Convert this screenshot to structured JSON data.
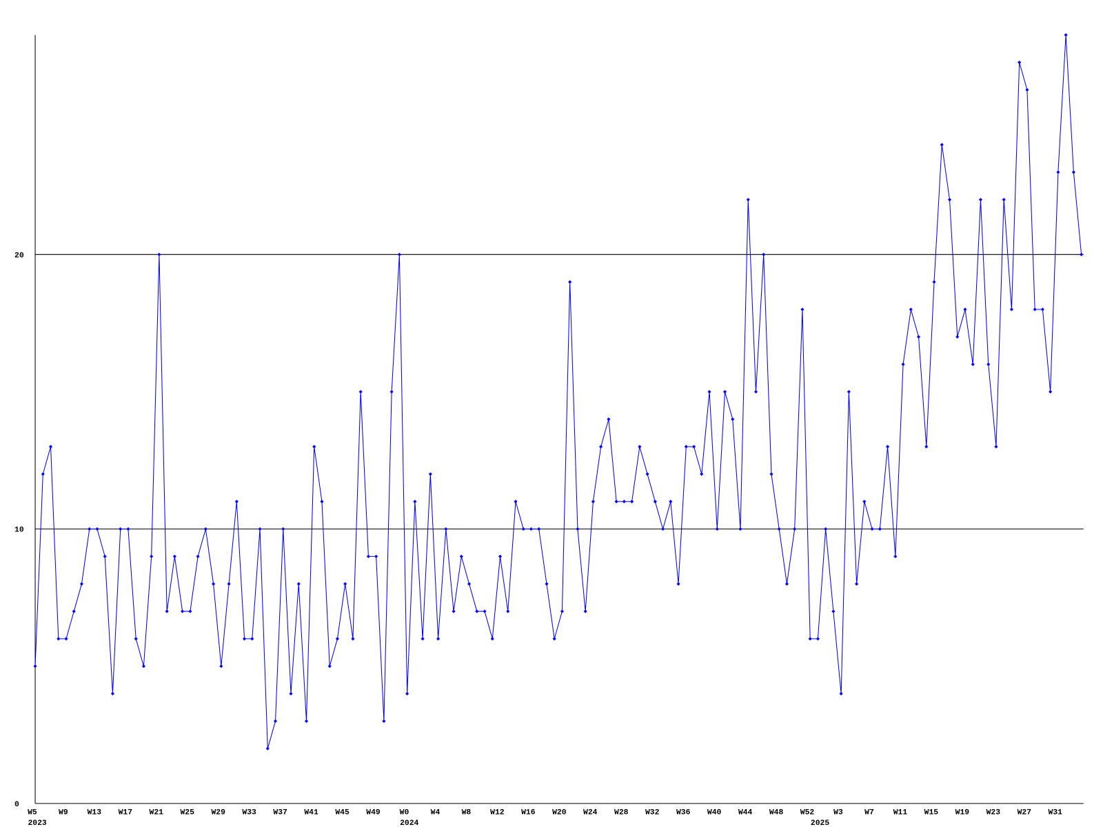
{
  "chart_data": {
    "type": "line",
    "categories": [
      "W5",
      null,
      null,
      null,
      "W9",
      null,
      null,
      null,
      "W13",
      null,
      null,
      null,
      "W17",
      null,
      null,
      null,
      "W21",
      null,
      null,
      null,
      "W25",
      null,
      null,
      null,
      "W29",
      null,
      null,
      null,
      "W33",
      null,
      null,
      null,
      "W37",
      null,
      null,
      null,
      "W41",
      null,
      null,
      null,
      "W45",
      null,
      null,
      null,
      "W49",
      null,
      null,
      null,
      "W0",
      null,
      null,
      null,
      "W4",
      null,
      null,
      null,
      "W8",
      null,
      null,
      null,
      "W12",
      null,
      null,
      null,
      "W16",
      null,
      null,
      null,
      "W20",
      null,
      null,
      null,
      "W24",
      null,
      null,
      null,
      "W28",
      null,
      null,
      null,
      "W32",
      null,
      null,
      null,
      "W36",
      null,
      null,
      null,
      "W40",
      null,
      null,
      null,
      "W44",
      null,
      null,
      null,
      "W48",
      null,
      null,
      null,
      "W52",
      null,
      null,
      null,
      "W3",
      null,
      null,
      null,
      "W7",
      null,
      null,
      null,
      "W11",
      null,
      null,
      null,
      "W15",
      null,
      null,
      null,
      "W19",
      null,
      null,
      null,
      "W23",
      null,
      null,
      null,
      "W27",
      null,
      null,
      null,
      "W31",
      null,
      null,
      null
    ],
    "years": [
      "2023",
      null,
      null,
      null,
      null,
      null,
      null,
      null,
      null,
      null,
      null,
      null,
      null,
      null,
      null,
      null,
      null,
      null,
      null,
      null,
      null,
      null,
      null,
      null,
      null,
      null,
      null,
      null,
      null,
      null,
      null,
      null,
      null,
      null,
      null,
      null,
      null,
      null,
      null,
      null,
      null,
      null,
      null,
      null,
      null,
      null,
      null,
      null,
      "2024",
      null,
      null,
      null,
      null,
      null,
      null,
      null,
      null,
      null,
      null,
      null,
      null,
      null,
      null,
      null,
      null,
      null,
      null,
      null,
      null,
      null,
      null,
      null,
      null,
      null,
      null,
      null,
      null,
      null,
      null,
      null,
      null,
      null,
      null,
      null,
      null,
      null,
      null,
      null,
      null,
      null,
      null,
      null,
      null,
      null,
      null,
      null,
      null,
      null,
      null,
      null,
      null,
      "2025",
      null,
      null,
      null,
      null,
      null,
      null,
      null,
      null,
      null,
      null,
      null,
      null,
      null,
      null,
      null,
      null,
      null,
      null,
      null,
      null,
      null,
      null,
      null,
      null,
      null,
      null,
      null,
      null,
      null,
      null,
      null,
      null,
      null
    ],
    "values": [
      5,
      12,
      13,
      6,
      6,
      7,
      8,
      10,
      10,
      9,
      4,
      10,
      10,
      6,
      5,
      9,
      20,
      7,
      9,
      7,
      7,
      9,
      10,
      8,
      5,
      8,
      11,
      6,
      6,
      10,
      2,
      3,
      10,
      4,
      8,
      3,
      13,
      11,
      5,
      6,
      8,
      6,
      15,
      9,
      9,
      3,
      15,
      20,
      4,
      11,
      6,
      12,
      6,
      10,
      7,
      9,
      8,
      7,
      7,
      6,
      9,
      7,
      11,
      10,
      10,
      10,
      8,
      6,
      7,
      19,
      10,
      7,
      11,
      13,
      14,
      11,
      11,
      11,
      13,
      12,
      11,
      10,
      11,
      8,
      13,
      13,
      12,
      15,
      10,
      15,
      14,
      10,
      22,
      15,
      20,
      12,
      10,
      8,
      10,
      18,
      6,
      6,
      10,
      7,
      4,
      15,
      8,
      11,
      10,
      10,
      13,
      9,
      16,
      18,
      17,
      13,
      19,
      24,
      22,
      17,
      18,
      16,
      22,
      16,
      13,
      22,
      18,
      27,
      26,
      18,
      18,
      15,
      23,
      28,
      23,
      20
    ],
    "color": "#0000ff",
    "ylim": [
      0,
      28
    ],
    "yticks": [
      0,
      10,
      20
    ],
    "grid": true
  }
}
